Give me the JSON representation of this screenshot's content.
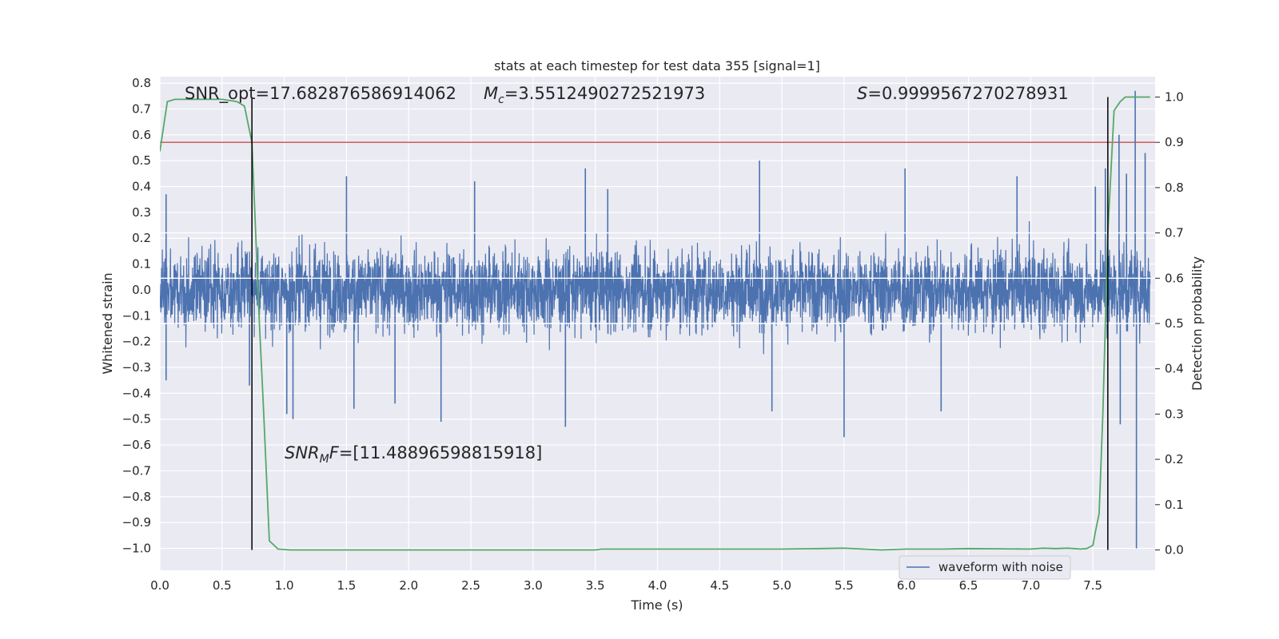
{
  "chart_data": {
    "type": "line",
    "title": "stats at each timestep for test data 355 [signal=1]",
    "xlabel": "Time (s)",
    "ylabel": "Whitened strain",
    "ylabel_right": "Detection probability",
    "xlim": [
      0.0,
      8.0
    ],
    "ylim": [
      -1.085,
      0.825
    ],
    "ylim_right": [
      -0.045,
      1.045
    ],
    "x_ticks": [
      "0.0",
      "0.5",
      "1.0",
      "1.5",
      "2.0",
      "2.5",
      "3.0",
      "3.5",
      "4.0",
      "4.5",
      "5.0",
      "5.5",
      "6.0",
      "6.5",
      "7.0",
      "7.5"
    ],
    "y_ticks": [
      "0.8",
      "0.7",
      "0.6",
      "0.5",
      "0.4",
      "0.3",
      "0.2",
      "0.1",
      "0.0",
      "−0.1",
      "−0.2",
      "−0.3",
      "−0.4",
      "−0.5",
      "−0.6",
      "−0.7",
      "−0.8",
      "−0.9",
      "−1.0"
    ],
    "y_ticks_right": [
      "1.0",
      "0.9",
      "0.8",
      "0.7",
      "0.6",
      "0.5",
      "0.4",
      "0.3",
      "0.2",
      "0.1",
      "0.0"
    ],
    "grid": true,
    "legend_position": "bottom-right",
    "annotations": {
      "snr_opt": "SNR_opt=17.682876586914062",
      "mc_prefix": "M",
      "mc_sub": "c",
      "mc_value": "=3.5512490272521973",
      "s_prefix": "S",
      "s_value": "=0.9999567270278931",
      "snrmf_prefix": "SNR",
      "snrmf_sub": "M",
      "snrmf_suffix": "F",
      "snrmf_value": "=[11.48896598815918]"
    },
    "series": [
      {
        "name": "waveform with noise",
        "axis": "left",
        "color": "#4c72b0",
        "description_range": [
          -0.35,
          0.35
        ],
        "peaks": [
          {
            "x": 0.05,
            "y": 0.37
          },
          {
            "x": 0.05,
            "y": -0.35
          },
          {
            "x": 0.72,
            "y": -0.37
          },
          {
            "x": 1.02,
            "y": -0.48
          },
          {
            "x": 1.07,
            "y": -0.5
          },
          {
            "x": 1.5,
            "y": 0.44
          },
          {
            "x": 1.56,
            "y": -0.46
          },
          {
            "x": 1.89,
            "y": -0.44
          },
          {
            "x": 2.26,
            "y": -0.51
          },
          {
            "x": 2.53,
            "y": 0.42
          },
          {
            "x": 3.26,
            "y": -0.53
          },
          {
            "x": 3.42,
            "y": 0.47
          },
          {
            "x": 3.6,
            "y": 0.39
          },
          {
            "x": 4.82,
            "y": 0.5
          },
          {
            "x": 4.92,
            "y": -0.47
          },
          {
            "x": 5.5,
            "y": -0.57
          },
          {
            "x": 5.99,
            "y": 0.47
          },
          {
            "x": 6.28,
            "y": -0.47
          },
          {
            "x": 6.89,
            "y": 0.44
          },
          {
            "x": 7.52,
            "y": 0.4
          },
          {
            "x": 7.6,
            "y": 0.47
          },
          {
            "x": 7.71,
            "y": 0.6
          },
          {
            "x": 7.72,
            "y": -0.52
          },
          {
            "x": 7.77,
            "y": 0.45
          },
          {
            "x": 7.84,
            "y": 0.77
          },
          {
            "x": 7.85,
            "y": -1.0
          },
          {
            "x": 7.92,
            "y": 0.53
          }
        ]
      },
      {
        "name": "",
        "axis": "right",
        "color": "#55a868",
        "x": [
          0.0,
          0.06,
          0.12,
          0.3,
          0.5,
          0.62,
          0.68,
          0.74,
          0.77,
          0.8,
          0.83,
          0.88,
          0.95,
          1.05,
          1.5,
          2.0,
          2.5,
          3.0,
          3.5,
          3.55,
          4.0,
          4.5,
          5.0,
          5.3,
          5.5,
          5.8,
          6.0,
          6.3,
          6.5,
          7.0,
          7.1,
          7.2,
          7.3,
          7.4,
          7.45,
          7.5,
          7.52,
          7.55,
          7.58,
          7.62,
          7.67,
          7.72,
          7.76,
          7.8,
          7.9,
          7.96
        ],
        "y": [
          0.88,
          0.99,
          0.995,
          0.995,
          0.995,
          0.99,
          0.98,
          0.9,
          0.7,
          0.5,
          0.33,
          0.02,
          0.002,
          0.0,
          0.0,
          0.0,
          0.0,
          0.0,
          0.0,
          0.002,
          0.002,
          0.002,
          0.002,
          0.003,
          0.004,
          0.0,
          0.002,
          0.002,
          0.003,
          0.002,
          0.004,
          0.003,
          0.004,
          0.002,
          0.003,
          0.01,
          0.04,
          0.08,
          0.3,
          0.7,
          0.97,
          0.99,
          1.0,
          1.0,
          1.0,
          1.0
        ]
      }
    ],
    "hlines": [
      {
        "axis": "right",
        "y": 0.9,
        "color": "#c44e52"
      },
      {
        "axis": "right",
        "y": 0.7,
        "color": "#ffffff"
      },
      {
        "axis": "right",
        "y": 0.6,
        "color": "#ffffff"
      },
      {
        "axis": "right",
        "y": 0.5,
        "color": "#ffffff"
      }
    ],
    "vlines": [
      {
        "x": 0.74,
        "y_from": 0.0,
        "y_to": 1.0,
        "axis": "right",
        "color": "#000000"
      },
      {
        "x": 7.62,
        "y_from": 0.0,
        "y_to": 1.0,
        "axis": "right",
        "color": "#000000"
      }
    ]
  }
}
